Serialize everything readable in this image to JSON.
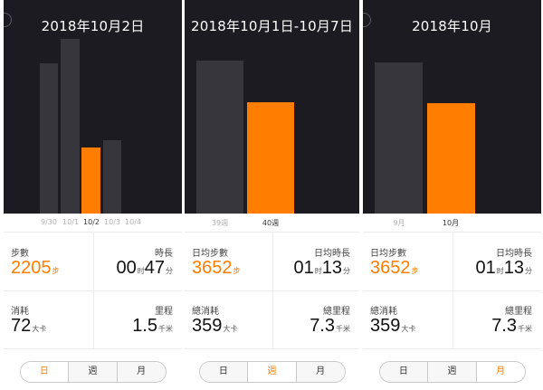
{
  "colors": {
    "orange": "#ff7d00",
    "bar_gray": "#38363d",
    "chart_bg": "#1c1b21"
  },
  "panels": [
    {
      "title": "2018年10月2日",
      "x_labels": [
        "9/30",
        "10/1",
        "10/2",
        "10/3",
        "10/4"
      ],
      "active_label": 2,
      "stats": {
        "steps": {
          "label": "步數",
          "value": "2205",
          "unit": "步"
        },
        "duration": {
          "label": "時長",
          "hours": "00",
          "hours_unit": "时",
          "minutes": "47",
          "minutes_unit": "分"
        },
        "calories": {
          "label": "消耗",
          "value": "72",
          "unit": "大卡"
        },
        "distance": {
          "label": "里程",
          "value": "1.5",
          "unit": "千米"
        }
      },
      "segment": {
        "active": 0
      }
    },
    {
      "title": "2018年10月1日-10月7日",
      "x_labels": [
        "39週",
        "40週"
      ],
      "active_label": 1,
      "stats": {
        "steps": {
          "label": "日均步數",
          "value": "3652",
          "unit": "步"
        },
        "duration": {
          "label": "日均時長",
          "hours": "01",
          "hours_unit": "时",
          "minutes": "13",
          "minutes_unit": "分"
        },
        "calories": {
          "label": "總消耗",
          "value": "359",
          "unit": "大卡"
        },
        "distance": {
          "label": "總里程",
          "value": "7.3",
          "unit": "千米"
        }
      },
      "segment": {
        "active": 1
      }
    },
    {
      "title": "2018年10月",
      "x_labels": [
        "9月",
        "10月"
      ],
      "active_label": 1,
      "stats": {
        "steps": {
          "label": "日均步數",
          "value": "3652",
          "unit": "步"
        },
        "duration": {
          "label": "日均時長",
          "hours": "01",
          "hours_unit": "时",
          "minutes": "13",
          "minutes_unit": "分"
        },
        "calories": {
          "label": "總消耗",
          "value": "359",
          "unit": "大卡"
        },
        "distance": {
          "label": "總里程",
          "value": "7.3",
          "unit": "千米"
        }
      },
      "segment": {
        "active": 2
      }
    }
  ],
  "segment_labels": [
    "日",
    "週",
    "月"
  ]
}
